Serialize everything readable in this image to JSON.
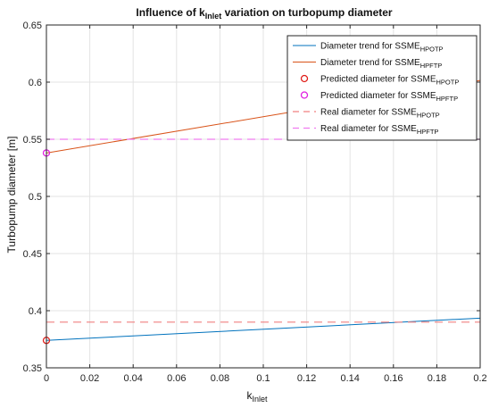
{
  "chart_data": {
    "type": "line",
    "title": {
      "prefix": "Influence of k",
      "sub": "Inlet",
      "suffix": " variation on turbopump diameter"
    },
    "xlabel": {
      "base": "k",
      "sub": "Inlet"
    },
    "ylabel": "Turbopump diameter [m]",
    "xlim": [
      0,
      0.2
    ],
    "ylim": [
      0.35,
      0.65
    ],
    "grid": true,
    "legend_position": "top-right",
    "x_ticks": [
      "0",
      "0.02",
      "0.04",
      "0.06",
      "0.08",
      "0.1",
      "0.12",
      "0.14",
      "0.16",
      "0.18",
      "0.2"
    ],
    "x_tick_values": [
      0,
      0.02,
      0.04,
      0.06,
      0.08,
      0.1,
      0.12,
      0.14,
      0.16,
      0.18,
      0.2
    ],
    "y_ticks": [
      "0.35",
      "0.4",
      "0.45",
      "0.5",
      "0.55",
      "0.6",
      "0.65"
    ],
    "y_tick_values": [
      0.35,
      0.4,
      0.45,
      0.5,
      0.55,
      0.6,
      0.65
    ],
    "series": [
      {
        "label_prefix": "Diameter trend for SSME",
        "label_sub": "HPOTP",
        "style": "line",
        "color": "#0072BD",
        "x": [
          0,
          0.2
        ],
        "y": [
          0.374,
          0.3935
        ]
      },
      {
        "label_prefix": "Diameter trend for SSME",
        "label_sub": "HPFTP",
        "style": "line",
        "color": "#D95319",
        "x": [
          0,
          0.2
        ],
        "y": [
          0.538,
          0.6015
        ]
      },
      {
        "label_prefix": "Predicted diameter for SSME",
        "label_sub": "HPOTP",
        "style": "marker",
        "color": "#E0201B",
        "x": [
          0
        ],
        "y": [
          0.374
        ]
      },
      {
        "label_prefix": "Predicted diameter for SSME",
        "label_sub": "HPFTP",
        "style": "marker",
        "color": "#E020E0",
        "x": [
          0
        ],
        "y": [
          0.538
        ]
      },
      {
        "label_prefix": "Real diameter for SSME",
        "label_sub": "HPOTP",
        "style": "dashed",
        "color": "#F08080",
        "x": [
          0,
          0.2
        ],
        "y": [
          0.39,
          0.39
        ]
      },
      {
        "label_prefix": "Real diameter for SSME",
        "label_sub": "HPFTP",
        "style": "dashed",
        "color": "#F07CF0",
        "x": [
          0,
          0.2
        ],
        "y": [
          0.55,
          0.55
        ]
      }
    ]
  }
}
